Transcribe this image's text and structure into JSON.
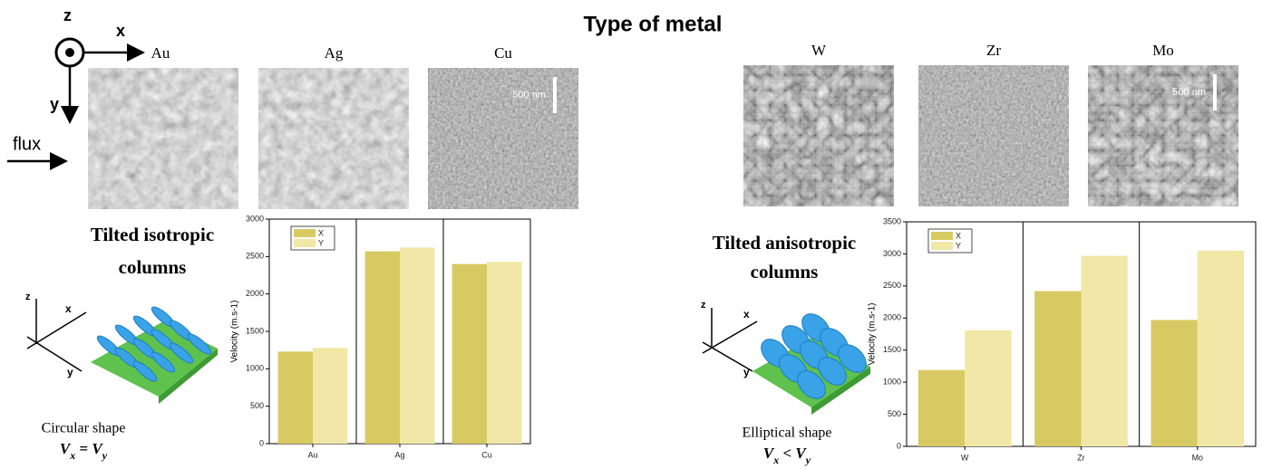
{
  "figure": {
    "title": "Type of metal",
    "axes": {
      "z": "z",
      "x": "x",
      "y": "y",
      "flux": "flux"
    },
    "images": [
      "Au",
      "Ag",
      "Cu",
      "W",
      "Zr",
      "Mo"
    ],
    "scale_bar": "500 nm",
    "left": {
      "heading": [
        "Tilted isotropic",
        "columns"
      ],
      "axes": [
        "z",
        "x",
        "y"
      ],
      "shape": "Circular shape",
      "relation": [
        "V",
        "x",
        " = ",
        "V",
        "y"
      ]
    },
    "right": {
      "heading": [
        "Tilted anisotropic",
        "columns"
      ],
      "axes": [
        "z",
        "x",
        "y"
      ],
      "shape": "Elliptical shape",
      "relation": [
        "V",
        "x",
        " < ",
        "V",
        "y"
      ]
    }
  },
  "chart_data": [
    {
      "type": "bar",
      "y_label": "Velocity (m.s-1)",
      "categories": [
        "Au",
        "Ag",
        "Cu"
      ],
      "series": [
        {
          "name": "X",
          "color": "#d8ca62",
          "values": [
            1230,
            2570,
            2400
          ]
        },
        {
          "name": "Y",
          "color": "#f1e7a6",
          "values": [
            1280,
            2620,
            2430
          ]
        }
      ],
      "ylim": [
        0,
        3000
      ],
      "yticks": [
        0,
        500,
        1000,
        1500,
        2000,
        2500,
        3000
      ],
      "legend": "top-left"
    },
    {
      "type": "bar",
      "y_label": "Velocity (m.s-1)",
      "categories": [
        "W",
        "Zr",
        "Mo"
      ],
      "series": [
        {
          "name": "X",
          "color": "#d8ca62",
          "values": [
            1190,
            2420,
            1970
          ]
        },
        {
          "name": "Y",
          "color": "#f1e7a6",
          "values": [
            1810,
            2970,
            3050
          ]
        }
      ],
      "ylim": [
        0,
        3500
      ],
      "yticks": [
        0,
        500,
        1000,
        1500,
        2000,
        2500,
        3000,
        3500
      ],
      "legend": "top-left"
    }
  ]
}
